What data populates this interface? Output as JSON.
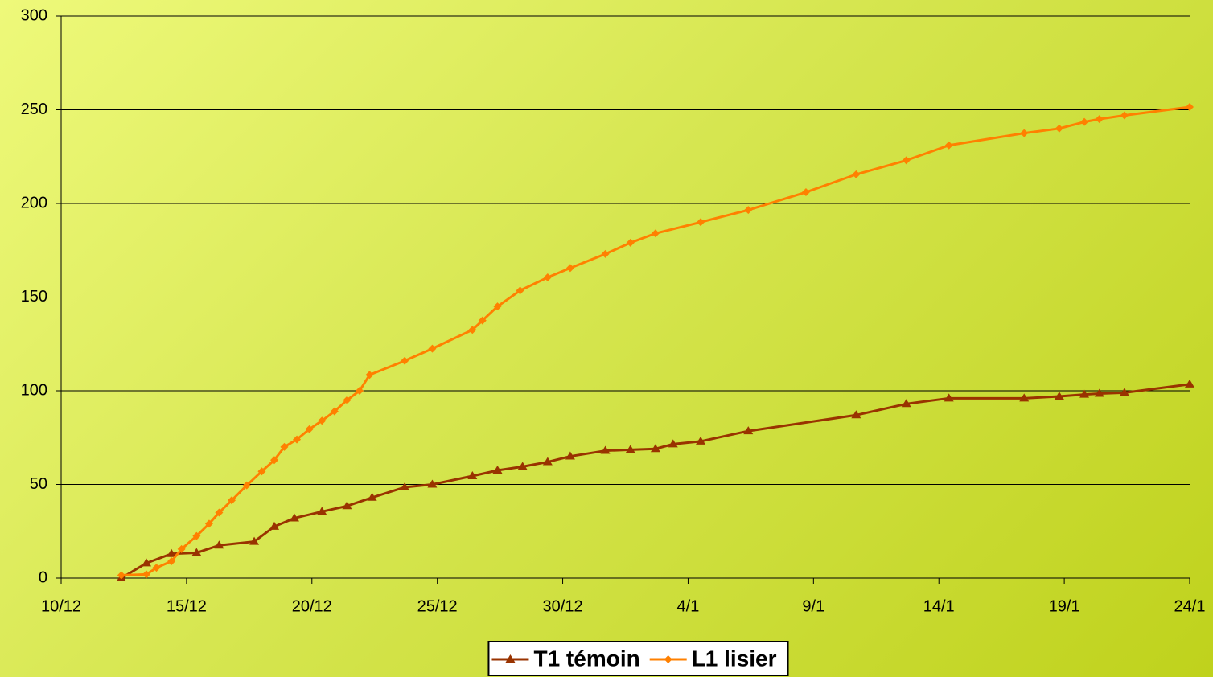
{
  "chart_data": {
    "type": "line",
    "xlim": [
      0,
      45
    ],
    "ylim": [
      0,
      300
    ],
    "xticks": [
      {
        "value": 0,
        "label": "10/12"
      },
      {
        "value": 5,
        "label": "15/12"
      },
      {
        "value": 10,
        "label": "20/12"
      },
      {
        "value": 15,
        "label": "25/12"
      },
      {
        "value": 20,
        "label": "30/12"
      },
      {
        "value": 25,
        "label": "4/1"
      },
      {
        "value": 30,
        "label": "9/1"
      },
      {
        "value": 35,
        "label": "14/1"
      },
      {
        "value": 40,
        "label": "19/1"
      },
      {
        "value": 45,
        "label": "24/1"
      }
    ],
    "yticks": [
      0,
      50,
      100,
      150,
      200,
      250,
      300
    ],
    "grid": true,
    "legend": "bottom",
    "series": [
      {
        "name": "T1 témoin",
        "color": "#993300",
        "marker": "triangle",
        "x": [
          2.4,
          3.4,
          4.4,
          5.4,
          6.3,
          7.7,
          8.5,
          9.3,
          10.4,
          11.4,
          12.4,
          13.7,
          14.8,
          16.4,
          17.4,
          18.4,
          19.4,
          20.3,
          21.7,
          22.7,
          23.7,
          24.4,
          25.5,
          27.4,
          31.7,
          33.7,
          35.4,
          38.4,
          39.8,
          40.8,
          41.4,
          42.4,
          45
        ],
        "values": [
          0,
          8,
          13,
          13.5,
          17.5,
          19.5,
          27.5,
          32,
          35.5,
          38.5,
          43,
          48.5,
          50,
          54.5,
          57.5,
          59.5,
          62,
          65,
          68,
          68.5,
          69,
          71.5,
          73,
          78.5,
          87,
          93,
          96,
          96,
          97,
          98,
          98.5,
          99,
          103.5
        ]
      },
      {
        "name": "L1 lisier",
        "color": "#ff8000",
        "marker": "diamond",
        "x": [
          2.4,
          3.4,
          3.8,
          4.4,
          4.8,
          5.4,
          5.9,
          6.3,
          6.8,
          7.4,
          8.0,
          8.5,
          8.9,
          9.4,
          9.9,
          10.4,
          10.9,
          11.4,
          11.9,
          12.3,
          13.7,
          14.8,
          16.4,
          16.8,
          17.4,
          18.3,
          19.4,
          20.3,
          21.7,
          22.7,
          23.7,
          25.5,
          27.4,
          29.7,
          31.7,
          33.7,
          35.4,
          38.4,
          39.8,
          40.8,
          41.4,
          42.4,
          45
        ],
        "values": [
          1.5,
          2,
          5.5,
          9,
          15.5,
          22.5,
          29,
          35,
          41.5,
          49.5,
          57,
          63,
          70,
          74,
          79.5,
          84,
          89,
          95,
          100,
          108.5,
          116,
          122.5,
          132.5,
          137.5,
          145,
          153.5,
          160.5,
          165.5,
          173,
          179,
          184,
          190,
          196.5,
          206,
          215.5,
          223,
          231,
          237.5,
          240,
          243.5,
          245,
          247,
          251.5
        ]
      }
    ]
  }
}
